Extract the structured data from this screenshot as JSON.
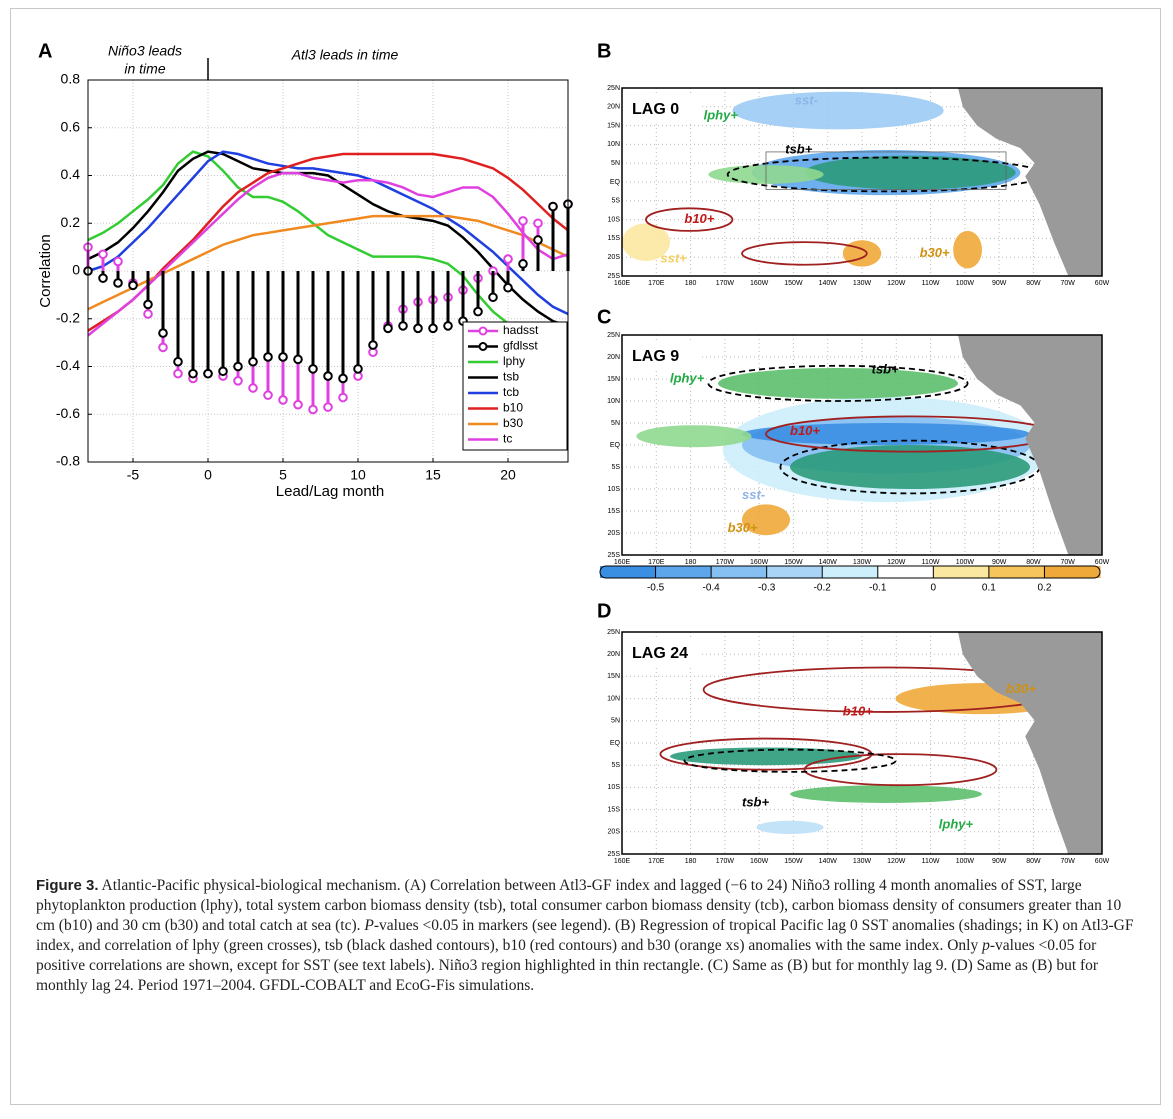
{
  "chart_data": {
    "type": "line",
    "panel": "A",
    "xlabel": "Lead/Lag month",
    "ylabel": "Correlation",
    "annotations": [
      "Niño3 leads",
      "in time",
      "Atl3 leads in time"
    ],
    "x": [
      -8,
      -7,
      -6,
      -5,
      -4,
      -3,
      -2,
      -1,
      0,
      1,
      2,
      3,
      4,
      5,
      6,
      7,
      8,
      9,
      10,
      11,
      12,
      13,
      14,
      15,
      16,
      17,
      18,
      19,
      20,
      21,
      22,
      23,
      24
    ],
    "xlim": [
      -8,
      24
    ],
    "xticks": [
      -5,
      0,
      5,
      10,
      15,
      20
    ],
    "ylim": [
      -0.8,
      0.8
    ],
    "yticks": [
      -0.8,
      -0.6,
      -0.4,
      -0.2,
      0,
      0.2,
      0.4,
      0.6,
      0.8
    ],
    "grid": true,
    "legend": "lower right",
    "series": [
      {
        "name": "hadsst",
        "color": "#e040e0",
        "style": "stem",
        "values": [
          0.1,
          0.07,
          0.04,
          -0.05,
          -0.18,
          -0.32,
          -0.43,
          -0.45,
          -0.43,
          -0.44,
          -0.46,
          -0.49,
          -0.52,
          -0.54,
          -0.56,
          -0.58,
          -0.57,
          -0.53,
          -0.44,
          -0.34,
          -0.23,
          -0.16,
          -0.13,
          -0.12,
          -0.11,
          -0.08,
          -0.03,
          0.0,
          0.05,
          0.21,
          0.2,
          0.27,
          0.28
        ]
      },
      {
        "name": "gfdlsst",
        "color": "#000000",
        "style": "stem",
        "values": [
          0.0,
          -0.03,
          -0.05,
          -0.06,
          -0.14,
          -0.26,
          -0.38,
          -0.43,
          -0.43,
          -0.42,
          -0.4,
          -0.38,
          -0.36,
          -0.36,
          -0.37,
          -0.41,
          -0.44,
          -0.45,
          -0.41,
          -0.31,
          -0.24,
          -0.23,
          -0.24,
          -0.24,
          -0.23,
          -0.21,
          -0.17,
          -0.11,
          -0.07,
          0.03,
          0.13,
          0.27,
          0.28
        ]
      },
      {
        "name": "lphy",
        "color": "#33cc33",
        "style": "line",
        "values": [
          0.13,
          0.16,
          0.2,
          0.25,
          0.3,
          0.36,
          0.45,
          0.5,
          0.48,
          0.42,
          0.35,
          0.31,
          0.31,
          0.29,
          0.25,
          0.2,
          0.15,
          0.12,
          0.09,
          0.06,
          0.06,
          0.06,
          0.06,
          0.05,
          0.03,
          -0.02,
          -0.1,
          -0.17,
          -0.22,
          -0.24,
          -0.25,
          -0.25,
          -0.25
        ]
      },
      {
        "name": "tsb",
        "color": "#000000",
        "style": "line",
        "values": [
          0.05,
          0.08,
          0.12,
          0.18,
          0.25,
          0.33,
          0.42,
          0.47,
          0.5,
          0.49,
          0.46,
          0.43,
          0.42,
          0.41,
          0.41,
          0.41,
          0.4,
          0.36,
          0.32,
          0.28,
          0.25,
          0.23,
          0.22,
          0.21,
          0.19,
          0.14,
          0.08,
          0.01,
          -0.06,
          -0.12,
          -0.17,
          -0.21,
          -0.23
        ]
      },
      {
        "name": "tcb",
        "color": "#1f3fe0",
        "style": "line",
        "values": [
          0.0,
          0.02,
          0.06,
          0.12,
          0.18,
          0.25,
          0.32,
          0.39,
          0.46,
          0.5,
          0.49,
          0.47,
          0.45,
          0.44,
          0.43,
          0.43,
          0.42,
          0.41,
          0.4,
          0.38,
          0.35,
          0.32,
          0.29,
          0.26,
          0.22,
          0.18,
          0.13,
          0.08,
          0.02,
          -0.04,
          -0.1,
          -0.15,
          -0.18
        ]
      },
      {
        "name": "b10",
        "color": "#e02020",
        "style": "line",
        "values": [
          -0.25,
          -0.21,
          -0.17,
          -0.12,
          -0.06,
          0.01,
          0.07,
          0.13,
          0.2,
          0.27,
          0.33,
          0.37,
          0.41,
          0.43,
          0.45,
          0.47,
          0.48,
          0.49,
          0.49,
          0.49,
          0.49,
          0.49,
          0.49,
          0.49,
          0.48,
          0.47,
          0.45,
          0.43,
          0.39,
          0.34,
          0.28,
          0.22,
          0.17
        ]
      },
      {
        "name": "b30",
        "color": "#f08a20",
        "style": "line",
        "values": [
          -0.16,
          -0.13,
          -0.1,
          -0.07,
          -0.04,
          -0.01,
          0.02,
          0.05,
          0.08,
          0.11,
          0.13,
          0.15,
          0.16,
          0.17,
          0.18,
          0.19,
          0.2,
          0.21,
          0.22,
          0.23,
          0.23,
          0.23,
          0.23,
          0.23,
          0.23,
          0.22,
          0.21,
          0.19,
          0.17,
          0.15,
          0.12,
          0.09,
          0.06
        ]
      },
      {
        "name": "tc",
        "color": "#e040e0",
        "style": "line",
        "values": [
          -0.27,
          -0.22,
          -0.17,
          -0.12,
          -0.06,
          0.0,
          0.06,
          0.12,
          0.18,
          0.24,
          0.3,
          0.35,
          0.39,
          0.41,
          0.41,
          0.39,
          0.38,
          0.37,
          0.38,
          0.38,
          0.37,
          0.35,
          0.32,
          0.31,
          0.33,
          0.35,
          0.35,
          0.31,
          0.24,
          0.16,
          0.09,
          0.05,
          0.07
        ]
      }
    ]
  },
  "map_axes": {
    "lat_labels": [
      "25N",
      "20N",
      "15N",
      "10N",
      "5N",
      "EQ",
      "5S",
      "10S",
      "15S",
      "20S",
      "25S"
    ],
    "lon_labels": [
      "160E",
      "170E",
      "180",
      "170W",
      "160W",
      "150W",
      "140W",
      "130W",
      "120W",
      "110W",
      "100W",
      "90W",
      "80W",
      "70W",
      "60W"
    ]
  },
  "maps": [
    {
      "panel": "B",
      "lag_label": "LAG 0",
      "labels": [
        {
          "text": "lphy+",
          "color": "#22aa44"
        },
        {
          "text": "sst-",
          "color": "#8fb4e8"
        },
        {
          "text": "tsb+",
          "color": "#000000"
        },
        {
          "text": "b10+",
          "color": "#c01818"
        },
        {
          "text": "sst+",
          "color": "#f4d060"
        },
        {
          "text": "b30+",
          "color": "#d09010"
        }
      ]
    },
    {
      "panel": "C",
      "lag_label": "LAG 9",
      "labels": [
        {
          "text": "lphy+",
          "color": "#22aa44"
        },
        {
          "text": "tsb+",
          "color": "#000000"
        },
        {
          "text": "b10+",
          "color": "#c01818"
        },
        {
          "text": "sst-",
          "color": "#8fb4e8"
        },
        {
          "text": "b30+",
          "color": "#d09010"
        }
      ]
    },
    {
      "panel": "D",
      "lag_label": "LAG 24",
      "labels": [
        {
          "text": "b30+",
          "color": "#d09010"
        },
        {
          "text": "b10+",
          "color": "#c01818"
        },
        {
          "text": "tsb+",
          "color": "#000000"
        },
        {
          "text": "lphy+",
          "color": "#22aa44"
        }
      ]
    }
  ],
  "colorbar": {
    "lim": [
      -0.6,
      0.3
    ],
    "ticks": [
      -0.5,
      -0.4,
      -0.3,
      -0.2,
      -0.1,
      0,
      0.1,
      0.2
    ],
    "colors": [
      "#3b8fe3",
      "#5ea6ec",
      "#86bff2",
      "#a9d4f6",
      "#cdeefb",
      "#ffffff",
      "#fbe8a0",
      "#f6c65c",
      "#efa83a"
    ]
  },
  "caption": {
    "label": "Figure 3.",
    "parts": [
      " Atlantic-Pacific physical-biological mechanism. (A) Correlation between Atl3-GF index and lagged (−6 to 24) Niño3 rolling 4 month anomalies of SST, large phytoplankton production (lphy), total system carbon biomass density (tsb), total consumer carbon biomass density (tcb), carbon biomass density of consumers greater than 10 cm (b10) and 30 cm (b30) and total catch at sea (tc). ",
      "P",
      "-values <0.05 in markers (see legend). (B) Regression of tropical Pacific lag 0 SST anomalies (shadings; in K) on Atl3-GF index, and correlation of lphy (green crosses), tsb (black dashed contours), b10 (red contours) and b30 (orange xs) anomalies with the same index. Only ",
      "p",
      "-values <0.05 for positive correlations are shown, except for SST (see text labels). Niño3 region highlighted in thin rectangle. (C) Same as (B) but for monthly lag 9. (D) Same as (B) but for monthly lag 24. Period 1971–2004. GFDL-COBALT and EcoG-Fis simulations."
    ]
  }
}
